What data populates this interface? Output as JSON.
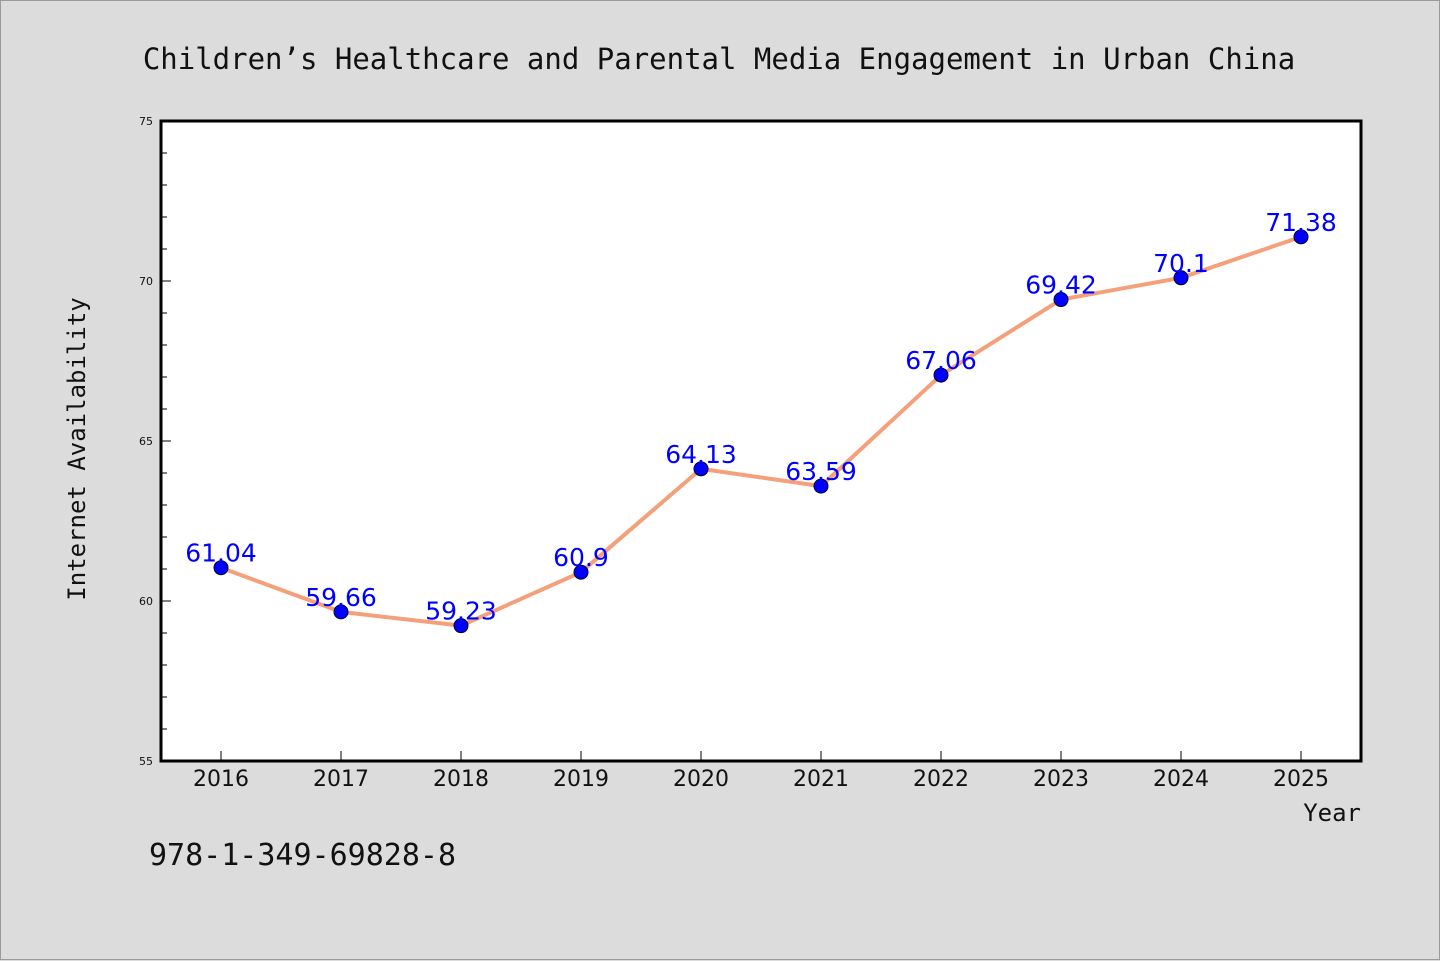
{
  "chart_data": {
    "type": "line",
    "title": "Children’s Healthcare and Parental Media Engagement in Urban China",
    "xlabel": "Year",
    "ylabel": "Internet Availability",
    "categories": [
      "2016",
      "2017",
      "2018",
      "2019",
      "2020",
      "2021",
      "2022",
      "2023",
      "2024",
      "2025"
    ],
    "series": [
      {
        "values": [
          61.04,
          59.66,
          59.23,
          60.9,
          64.13,
          63.59,
          67.06,
          69.42,
          70.1,
          71.38
        ],
        "data_labels": [
          "61.04",
          "59.66",
          "59.23",
          "60.9",
          "64.13",
          "63.59",
          "67.06",
          "69.42",
          "70.1",
          "71.38"
        ]
      }
    ],
    "ylim": [
      55,
      75
    ],
    "yticks": [
      "55",
      "60",
      "65",
      "70",
      "75"
    ],
    "grid": false,
    "legend": "none",
    "line_color": "#f4a07a",
    "marker_color": "#0000ff",
    "label_color": "#0000ff"
  },
  "footer": {
    "identifier": "978-1-349-69828-8"
  }
}
